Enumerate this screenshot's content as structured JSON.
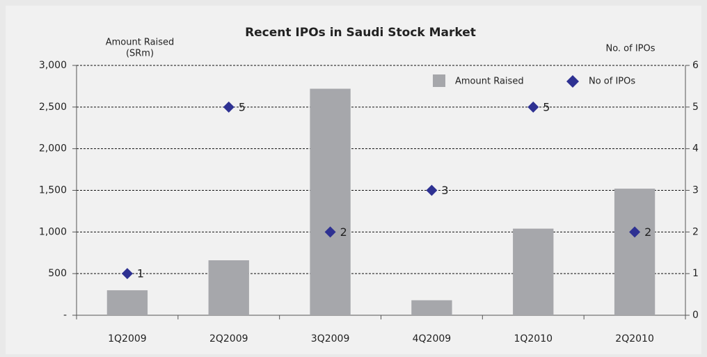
{
  "chart_data": {
    "type": "bar",
    "title": "Recent IPOs in Saudi Stock Market",
    "y_label": [
      "Amount Raised",
      "(SRm)"
    ],
    "y2_label": "No. of IPOs",
    "categories": [
      "1Q2009",
      "2Q2009",
      "3Q2009",
      "4Q2009",
      "1Q2010",
      "2Q2010"
    ],
    "series": [
      {
        "name": "Amount Raised",
        "type": "bar",
        "color": "#a6a7ab",
        "values": [
          300,
          660,
          2720,
          180,
          1040,
          1520
        ]
      },
      {
        "name": "No of IPOs",
        "type": "scatter",
        "marker": "diamond",
        "color": "#2e3192",
        "axis": "y2",
        "values": [
          1,
          5,
          2,
          3,
          5,
          2
        ],
        "data_labels": true
      }
    ],
    "ylim": [
      0,
      3000
    ],
    "yticks": [
      {
        "value": 0,
        "label": "-"
      },
      500,
      {
        "value": 1000,
        "label": "1,000"
      },
      {
        "value": 1500,
        "label": "1,500"
      },
      {
        "value": 2000,
        "label": "2,000"
      },
      {
        "value": 2500,
        "label": "2,500"
      },
      {
        "value": 3000,
        "label": "3,000"
      }
    ],
    "y2lim": [
      0,
      6
    ],
    "y2ticks": [
      0,
      1,
      2,
      3,
      4,
      5,
      6
    ],
    "grid": true,
    "legend": "top-right"
  }
}
